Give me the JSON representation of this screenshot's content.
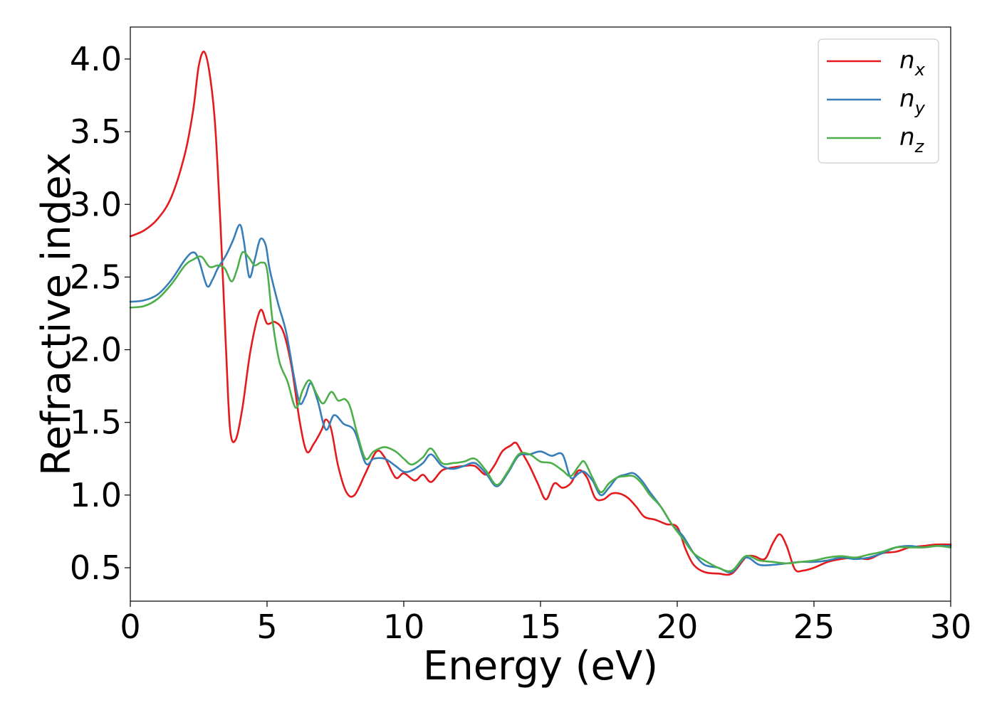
{
  "chart_data": {
    "type": "line",
    "title": "",
    "xlabel": "Energy (eV)",
    "ylabel": "Refractive index",
    "xlim": [
      0,
      30
    ],
    "ylim": [
      0.27,
      4.22
    ],
    "xticks": [
      0,
      5,
      10,
      15,
      20,
      25,
      30
    ],
    "xtick_labels": [
      "0",
      "5",
      "10",
      "15",
      "20",
      "25",
      "30"
    ],
    "yticks": [
      0.5,
      1.0,
      1.5,
      2.0,
      2.5,
      3.0,
      3.5,
      4.0
    ],
    "ytick_labels": [
      "0.5",
      "1.0",
      "1.5",
      "2.0",
      "2.5",
      "3.0",
      "3.5",
      "4.0"
    ],
    "grid": false,
    "legend_position": "top-right",
    "series": [
      {
        "name": "n_x",
        "label_base": "n",
        "label_sub": "x",
        "color": "#e41a1c",
        "x": [
          0,
          0.5,
          1,
          1.5,
          2,
          2.3,
          2.5,
          2.7,
          2.9,
          3.1,
          3.3,
          3.5,
          3.65,
          3.85,
          4.1,
          4.4,
          4.75,
          5.0,
          5.3,
          5.6,
          5.9,
          6.2,
          6.45,
          6.7,
          7.0,
          7.15,
          7.35,
          7.6,
          7.9,
          8.2,
          8.6,
          9.0,
          9.3,
          9.7,
          10.0,
          10.4,
          10.7,
          11.0,
          11.4,
          11.8,
          12.2,
          12.6,
          13.0,
          13.3,
          13.6,
          13.9,
          14.1,
          14.3,
          14.6,
          14.9,
          15.2,
          15.5,
          15.8,
          16.1,
          16.4,
          16.7,
          17.0,
          17.3,
          17.6,
          17.9,
          18.2,
          18.5,
          18.8,
          19.2,
          19.6,
          20.0,
          20.3,
          20.6,
          21.0,
          21.5,
          22.0,
          22.5,
          22.8,
          23.2,
          23.5,
          23.75,
          24.0,
          24.3,
          24.6,
          25.0,
          25.5,
          26.0,
          26.5,
          27.0,
          27.5,
          28.0,
          28.5,
          29.0,
          29.5,
          30.0
        ],
        "y": [
          2.78,
          2.82,
          2.9,
          3.05,
          3.35,
          3.65,
          3.95,
          4.05,
          3.9,
          3.55,
          2.85,
          2.0,
          1.45,
          1.38,
          1.6,
          2.0,
          2.27,
          2.18,
          2.19,
          2.12,
          1.88,
          1.5,
          1.3,
          1.35,
          1.45,
          1.52,
          1.45,
          1.2,
          1.02,
          1.0,
          1.15,
          1.3,
          1.26,
          1.12,
          1.15,
          1.1,
          1.14,
          1.09,
          1.17,
          1.19,
          1.2,
          1.2,
          1.14,
          1.2,
          1.3,
          1.34,
          1.36,
          1.3,
          1.2,
          1.08,
          0.97,
          1.08,
          1.05,
          1.08,
          1.17,
          1.12,
          0.98,
          0.97,
          1.01,
          1.01,
          0.98,
          0.92,
          0.85,
          0.83,
          0.8,
          0.78,
          0.63,
          0.52,
          0.47,
          0.46,
          0.46,
          0.57,
          0.58,
          0.56,
          0.67,
          0.73,
          0.65,
          0.49,
          0.48,
          0.5,
          0.54,
          0.56,
          0.57,
          0.56,
          0.6,
          0.61,
          0.64,
          0.65,
          0.66,
          0.66
        ]
      },
      {
        "name": "n_y",
        "label_base": "n",
        "label_sub": "y",
        "color": "#377eb8",
        "x": [
          0,
          0.5,
          1,
          1.5,
          2,
          2.3,
          2.5,
          2.8,
          3.0,
          3.2,
          3.5,
          3.75,
          4.0,
          4.15,
          4.35,
          4.55,
          4.75,
          4.95,
          5.1,
          5.4,
          5.7,
          6.0,
          6.2,
          6.4,
          6.6,
          6.85,
          7.15,
          7.45,
          7.8,
          8.2,
          8.6,
          8.9,
          9.3,
          9.7,
          10.0,
          10.3,
          10.7,
          11.0,
          11.4,
          11.8,
          12.2,
          12.6,
          13.0,
          13.4,
          13.8,
          14.2,
          14.6,
          15.0,
          15.4,
          15.8,
          16.1,
          16.4,
          16.6,
          16.9,
          17.2,
          17.5,
          17.8,
          18.1,
          18.4,
          18.7,
          19.0,
          19.4,
          19.8,
          20.2,
          20.6,
          21.0,
          21.5,
          22.0,
          22.5,
          23.0,
          23.5,
          24.0,
          24.5,
          25.0,
          25.5,
          26.0,
          26.5,
          27.0,
          27.5,
          28.0,
          28.5,
          29.0,
          29.5,
          30.0
        ],
        "y": [
          2.33,
          2.34,
          2.38,
          2.48,
          2.62,
          2.67,
          2.62,
          2.44,
          2.48,
          2.56,
          2.65,
          2.75,
          2.86,
          2.75,
          2.5,
          2.62,
          2.76,
          2.72,
          2.55,
          2.32,
          2.12,
          1.8,
          1.63,
          1.68,
          1.77,
          1.65,
          1.45,
          1.55,
          1.49,
          1.44,
          1.22,
          1.25,
          1.25,
          1.2,
          1.16,
          1.17,
          1.22,
          1.28,
          1.2,
          1.18,
          1.2,
          1.22,
          1.15,
          1.06,
          1.15,
          1.27,
          1.28,
          1.3,
          1.27,
          1.28,
          1.12,
          1.15,
          1.16,
          1.1,
          1.0,
          1.05,
          1.12,
          1.14,
          1.15,
          1.1,
          1.02,
          0.92,
          0.8,
          0.72,
          0.6,
          0.52,
          0.5,
          0.47,
          0.57,
          0.52,
          0.52,
          0.53,
          0.54,
          0.54,
          0.55,
          0.57,
          0.56,
          0.57,
          0.6,
          0.64,
          0.65,
          0.64,
          0.65,
          0.65
        ]
      },
      {
        "name": "n_z",
        "label_base": "n",
        "label_sub": "z",
        "color": "#4daf4a",
        "x": [
          0,
          0.5,
          1,
          1.5,
          2,
          2.3,
          2.6,
          2.9,
          3.2,
          3.45,
          3.7,
          3.9,
          4.1,
          4.35,
          4.55,
          4.8,
          5.0,
          5.2,
          5.45,
          5.75,
          6.05,
          6.3,
          6.55,
          6.8,
          7.05,
          7.35,
          7.6,
          7.85,
          8.05,
          8.3,
          8.6,
          8.9,
          9.3,
          9.7,
          10.0,
          10.3,
          10.7,
          11.0,
          11.4,
          11.8,
          12.2,
          12.6,
          13.0,
          13.4,
          13.8,
          14.2,
          14.6,
          15.0,
          15.4,
          15.8,
          16.1,
          16.4,
          16.6,
          16.9,
          17.2,
          17.5,
          17.8,
          18.1,
          18.4,
          18.7,
          19.0,
          19.4,
          19.8,
          20.2,
          20.6,
          21.0,
          21.5,
          22.0,
          22.5,
          23.0,
          23.5,
          24.0,
          24.5,
          25.0,
          25.5,
          26.0,
          26.5,
          27.0,
          27.5,
          28.0,
          28.5,
          29.0,
          29.5,
          30.0
        ],
        "y": [
          2.29,
          2.3,
          2.35,
          2.45,
          2.58,
          2.62,
          2.64,
          2.57,
          2.58,
          2.56,
          2.47,
          2.55,
          2.67,
          2.63,
          2.58,
          2.6,
          2.55,
          2.2,
          1.92,
          1.78,
          1.6,
          1.72,
          1.79,
          1.7,
          1.63,
          1.71,
          1.65,
          1.66,
          1.6,
          1.42,
          1.25,
          1.3,
          1.33,
          1.3,
          1.25,
          1.21,
          1.26,
          1.32,
          1.22,
          1.22,
          1.23,
          1.25,
          1.17,
          1.07,
          1.16,
          1.28,
          1.28,
          1.23,
          1.22,
          1.17,
          1.13,
          1.2,
          1.23,
          1.12,
          1.02,
          1.08,
          1.12,
          1.13,
          1.13,
          1.08,
          1.0,
          0.92,
          0.8,
          0.7,
          0.6,
          0.55,
          0.5,
          0.48,
          0.58,
          0.55,
          0.54,
          0.53,
          0.54,
          0.55,
          0.57,
          0.58,
          0.57,
          0.59,
          0.61,
          0.64,
          0.64,
          0.64,
          0.65,
          0.64
        ]
      }
    ]
  }
}
